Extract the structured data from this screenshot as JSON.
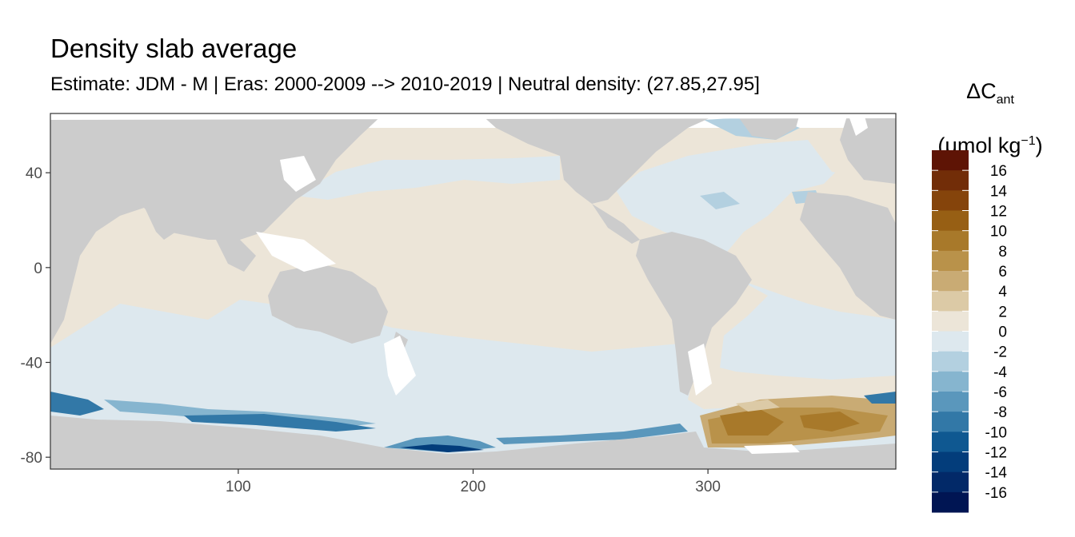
{
  "title": "Density slab average",
  "subtitle": "Estimate: JDM - M | Eras: 2000-2009 --> 2010-2019 | Neutral density: (27.85,27.95]",
  "legend": {
    "title_symbol": "ΔC",
    "title_sub": "ant",
    "unit_text": "(μmol kg",
    "unit_sup": "−1",
    "unit_close": ")"
  },
  "colors": {
    "land": "#cccccc",
    "no_data": "#ffffff",
    "panel_border": "#333333"
  },
  "chart_data": {
    "type": "heatmap",
    "title": "Density slab average",
    "subtitle": "Estimate: JDM - M | Eras: 2000-2009 --> 2010-2019 | Neutral density: (27.85,27.95]",
    "xlabel": "",
    "ylabel": "",
    "xlim": [
      20,
      380
    ],
    "ylim": [
      -85,
      65
    ],
    "x_ticks": [
      100,
      200,
      300
    ],
    "y_ticks": [
      40,
      0,
      -40,
      -80
    ],
    "grid": false,
    "legend_position": "right",
    "legend_breaks": [
      16,
      14,
      12,
      10,
      8,
      6,
      4,
      2,
      0,
      -2,
      -4,
      -6,
      -8,
      -10,
      -12,
      -14,
      -16
    ],
    "legend_bins": [
      {
        "range": [
          16,
          18
        ],
        "color": "#5e1405"
      },
      {
        "range": [
          14,
          16
        ],
        "color": "#722d08"
      },
      {
        "range": [
          12,
          14
        ],
        "color": "#85440b"
      },
      {
        "range": [
          10,
          12
        ],
        "color": "#975f14"
      },
      {
        "range": [
          8,
          10
        ],
        "color": "#a8792a"
      },
      {
        "range": [
          6,
          8
        ],
        "color": "#b9924a"
      },
      {
        "range": [
          4,
          6
        ],
        "color": "#c9ab74"
      },
      {
        "range": [
          2,
          4
        ],
        "color": "#dccaa6"
      },
      {
        "range": [
          0,
          2
        ],
        "color": "#ece5d8"
      },
      {
        "range": [
          -2,
          0
        ],
        "color": "#dde8ee"
      },
      {
        "range": [
          -4,
          -2
        ],
        "color": "#b3d0e0"
      },
      {
        "range": [
          -6,
          -4
        ],
        "color": "#86b5cf"
      },
      {
        "range": [
          -8,
          -6
        ],
        "color": "#5a97bc"
      },
      {
        "range": [
          -10,
          -8
        ],
        "color": "#3278a7"
      },
      {
        "range": [
          -12,
          -10
        ],
        "color": "#0f5891"
      },
      {
        "range": [
          -14,
          -12
        ],
        "color": "#033d7b"
      },
      {
        "range": [
          -16,
          -14
        ],
        "color": "#022968"
      },
      {
        "range": [
          -18,
          -16
        ],
        "color": "#001553"
      }
    ]
  }
}
